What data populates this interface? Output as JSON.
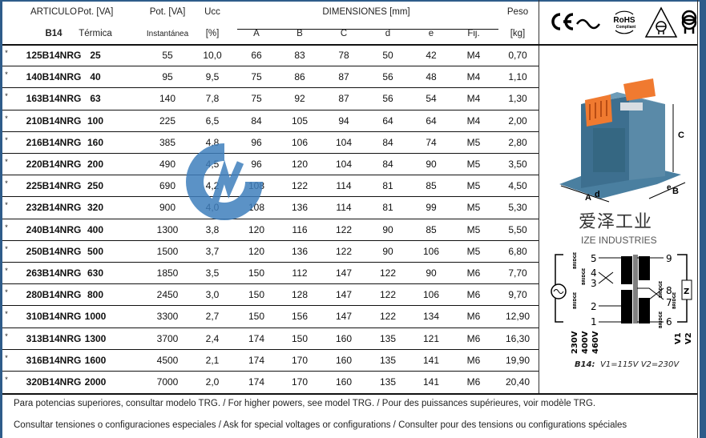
{
  "header": {
    "row1": [
      "ARTICULO",
      "Pot. [VA]",
      "Pot. [VA]",
      "Ucc",
      "DIMENSIONES [mm]",
      "Peso"
    ],
    "row2": [
      "B14",
      "Térmica",
      "Instantánea",
      "[%]",
      "A",
      "B",
      "C",
      "d",
      "e",
      "Fij.",
      "[kg]"
    ]
  },
  "rows": [
    [
      "*",
      "125B14NRG",
      "25",
      "55",
      "10,0",
      "66",
      "83",
      "78",
      "50",
      "42",
      "M4",
      "0,70"
    ],
    [
      "*",
      "140B14NRG",
      "40",
      "95",
      "9,5",
      "75",
      "86",
      "87",
      "56",
      "48",
      "M4",
      "1,10"
    ],
    [
      "*",
      "163B14NRG",
      "63",
      "140",
      "7,8",
      "75",
      "92",
      "87",
      "56",
      "54",
      "M4",
      "1,30"
    ],
    [
      "*",
      "210B14NRG",
      "100",
      "225",
      "6,5",
      "84",
      "105",
      "94",
      "64",
      "64",
      "M4",
      "2,00"
    ],
    [
      "*",
      "216B14NRG",
      "160",
      "385",
      "4,8",
      "96",
      "106",
      "104",
      "84",
      "74",
      "M5",
      "2,80"
    ],
    [
      "*",
      "220B14NRG",
      "200",
      "490",
      "4,5",
      "96",
      "120",
      "104",
      "84",
      "90",
      "M5",
      "3,50"
    ],
    [
      "*",
      "225B14NRG",
      "250",
      "690",
      "4,2",
      "108",
      "122",
      "114",
      "81",
      "85",
      "M5",
      "4,50"
    ],
    [
      "*",
      "232B14NRG",
      "320",
      "900",
      "4,0",
      "108",
      "136",
      "114",
      "81",
      "99",
      "M5",
      "5,30"
    ],
    [
      "*",
      "240B14NRG",
      "400",
      "1300",
      "3,8",
      "120",
      "116",
      "122",
      "90",
      "85",
      "M5",
      "5,50"
    ],
    [
      "*",
      "250B14NRG",
      "500",
      "1500",
      "3,7",
      "120",
      "136",
      "122",
      "90",
      "106",
      "M5",
      "6,80"
    ],
    [
      "*",
      "263B14NRG",
      "630",
      "1850",
      "3,5",
      "150",
      "112",
      "147",
      "122",
      "90",
      "M6",
      "7,70"
    ],
    [
      "*",
      "280B14NRG",
      "800",
      "2450",
      "3,0",
      "150",
      "128",
      "147",
      "122",
      "106",
      "M6",
      "9,70"
    ],
    [
      "*",
      "310B14NRG",
      "1000",
      "3300",
      "2,7",
      "150",
      "156",
      "147",
      "122",
      "134",
      "M6",
      "12,90"
    ],
    [
      "*",
      "313B14NRG",
      "1300",
      "3700",
      "2,4",
      "174",
      "150",
      "160",
      "135",
      "121",
      "M6",
      "16,30"
    ],
    [
      "*",
      "316B14NRG",
      "1600",
      "4500",
      "2,1",
      "174",
      "170",
      "160",
      "135",
      "141",
      "M6",
      "19,90"
    ],
    [
      "*",
      "320B14NRG",
      "2000",
      "7000",
      "2,0",
      "174",
      "170",
      "160",
      "135",
      "141",
      "M6",
      "20,40"
    ]
  ],
  "footer": {
    "line1": "Para potencias superiores, consultar modelo TRG. / For higher powers, see model TRG. / Pour des puissances supérieures, voir modèle TRG.",
    "line2": "Consultar tensiones o configuraciones especiales / Ask for special voltages or configurations / Consulter pour des tensions ou configurations spéciales"
  },
  "certifications": {
    "ce": "CE",
    "rohs": "RoHS",
    "rohs_sub": "Compliant",
    "icons": [
      "ce-mark",
      "ac-tilde",
      "rohs-badge",
      "safety-transformer-triangle",
      "isolating-transformer"
    ]
  },
  "dimension_labels": {
    "a": "A",
    "d": "d",
    "c": "C",
    "e": "e",
    "b": "B"
  },
  "diagram": {
    "terminals_left": [
      "5",
      "4",
      "3",
      "2",
      "1"
    ],
    "terminals_right": [
      "9",
      "8",
      "7",
      "6"
    ],
    "bridge": "BRIDGE",
    "load": "Z",
    "voltages_left": [
      "230V",
      "400V",
      "460V"
    ],
    "voltages_right": [
      "V1",
      "V2"
    ],
    "caption_bold": "B14:",
    "caption": "V1=115V  V2=230V"
  },
  "watermark": {
    "cn": "爱泽工业",
    "en": "IZE INDUSTRIES"
  },
  "colors": {
    "border": "#2e5c8a",
    "terminal": "#f07a30",
    "core": "#3d6f8f",
    "watermark": "#2f6fad"
  }
}
